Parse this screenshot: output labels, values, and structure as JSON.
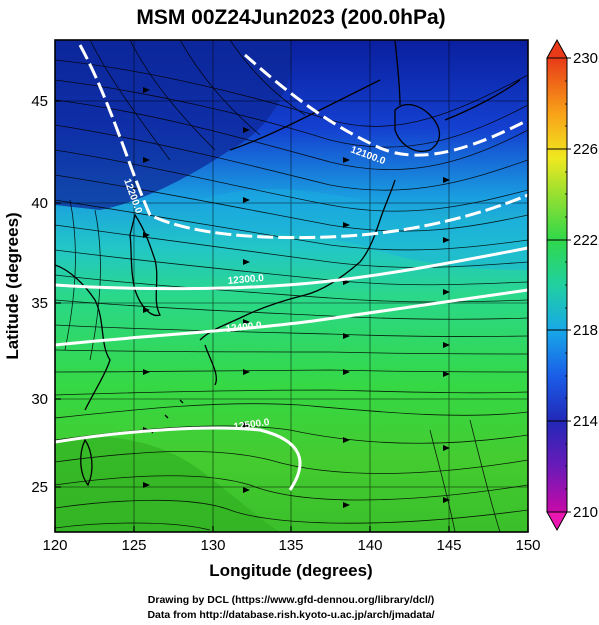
{
  "title": "MSM 00Z24Jun2023 (200.0hPa)",
  "xlabel": "Longitude (degrees)",
  "ylabel": "Latitude  (degrees)",
  "credits": [
    "Drawing by DCL (https://www.gfd-dennou.org/library/dcl/)",
    "Data from http://database.rish.kyoto-u.ac.jp/arch/jmadata/"
  ],
  "map": {
    "lon_range": [
      120,
      150
    ],
    "lat_range": [
      22.5,
      47.8
    ],
    "lon_ticks": [
      "120",
      "125",
      "130",
      "135",
      "140",
      "145",
      "150"
    ],
    "lat_ticks": [
      "25",
      "30",
      "35",
      "40",
      "45"
    ]
  },
  "colorbar": {
    "range": [
      210,
      230
    ],
    "ticks": [
      "210",
      "214",
      "218",
      "222",
      "226",
      "230"
    ]
  },
  "contour_labels": [
    "12100.0",
    "12200.0",
    "12300.0",
    "12400.0",
    "12500.0"
  ]
}
